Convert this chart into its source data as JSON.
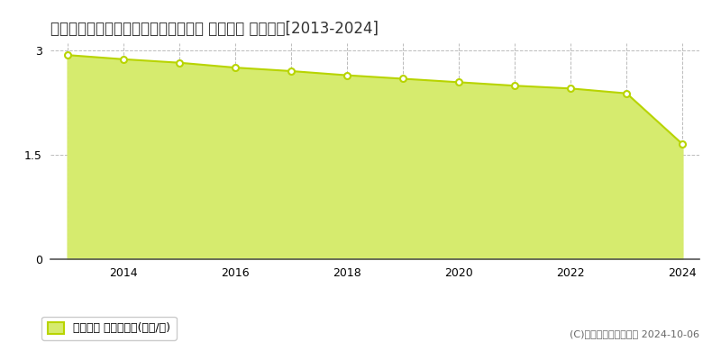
{
  "title": "石川県鳳珠郡能登町字上町ほ部４９番 基準地価 地価推移[2013-2024]",
  "years": [
    2013,
    2014,
    2015,
    2016,
    2017,
    2018,
    2019,
    2020,
    2021,
    2022,
    2023,
    2024
  ],
  "values": [
    2.93,
    2.87,
    2.82,
    2.75,
    2.7,
    2.64,
    2.59,
    2.54,
    2.49,
    2.45,
    2.38,
    1.65
  ],
  "ylim": [
    0,
    3.1
  ],
  "yticks": [
    0,
    1.5,
    3
  ],
  "line_color": "#b8d400",
  "fill_color": "#d6eb6e",
  "fill_alpha": 1.0,
  "marker_face_color": "#ffffff",
  "marker_edge_color": "#b8d400",
  "background_color": "#ffffff",
  "grid_color": "#bbbbbb",
  "title_fontsize": 12,
  "legend_label": "基準地価 平均坪単価(万円/坪)",
  "copyright_text": "(C)土地価格ドットコム 2024-10-06",
  "tick_fontsize": 9
}
